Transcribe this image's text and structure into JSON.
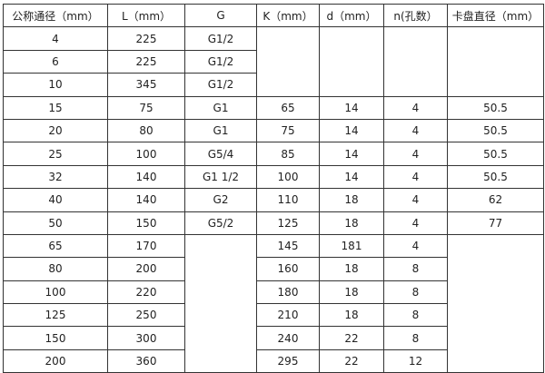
{
  "table": {
    "headers": [
      "公称通径（mm）",
      "L（mm）",
      "G",
      "K（mm）",
      "d（mm）",
      "n(孔数）",
      "卡盘直径（mm）"
    ],
    "rows": [
      [
        "4",
        "225",
        "G1/2",
        "",
        "",
        "",
        ""
      ],
      [
        "6",
        "225",
        "G1/2",
        "",
        "",
        "",
        ""
      ],
      [
        "10",
        "345",
        "G1/2",
        "",
        "",
        "",
        ""
      ],
      [
        "15",
        "75",
        "G1",
        "65",
        "14",
        "4",
        "50.5"
      ],
      [
        "20",
        "80",
        "G1",
        "75",
        "14",
        "4",
        "50.5"
      ],
      [
        "25",
        "100",
        "G5/4",
        "85",
        "14",
        "4",
        "50.5"
      ],
      [
        "32",
        "140",
        "G1  1/2",
        "100",
        "14",
        "4",
        "50.5"
      ],
      [
        "40",
        "140",
        "G2",
        "110",
        "18",
        "4",
        "62"
      ],
      [
        "50",
        "150",
        "G5/2",
        "125",
        "18",
        "4",
        "77"
      ],
      [
        "65",
        "170",
        "",
        "145",
        "181",
        "4",
        ""
      ],
      [
        "80",
        "200",
        "",
        "160",
        "18",
        "8",
        ""
      ],
      [
        "100",
        "220",
        "",
        "180",
        "18",
        "8",
        ""
      ],
      [
        "125",
        "250",
        "",
        "210",
        "18",
        "8",
        ""
      ],
      [
        "150",
        "300",
        "",
        "240",
        "22",
        "8",
        ""
      ],
      [
        "200",
        "360",
        "",
        "295",
        "22",
        "12",
        ""
      ]
    ]
  }
}
